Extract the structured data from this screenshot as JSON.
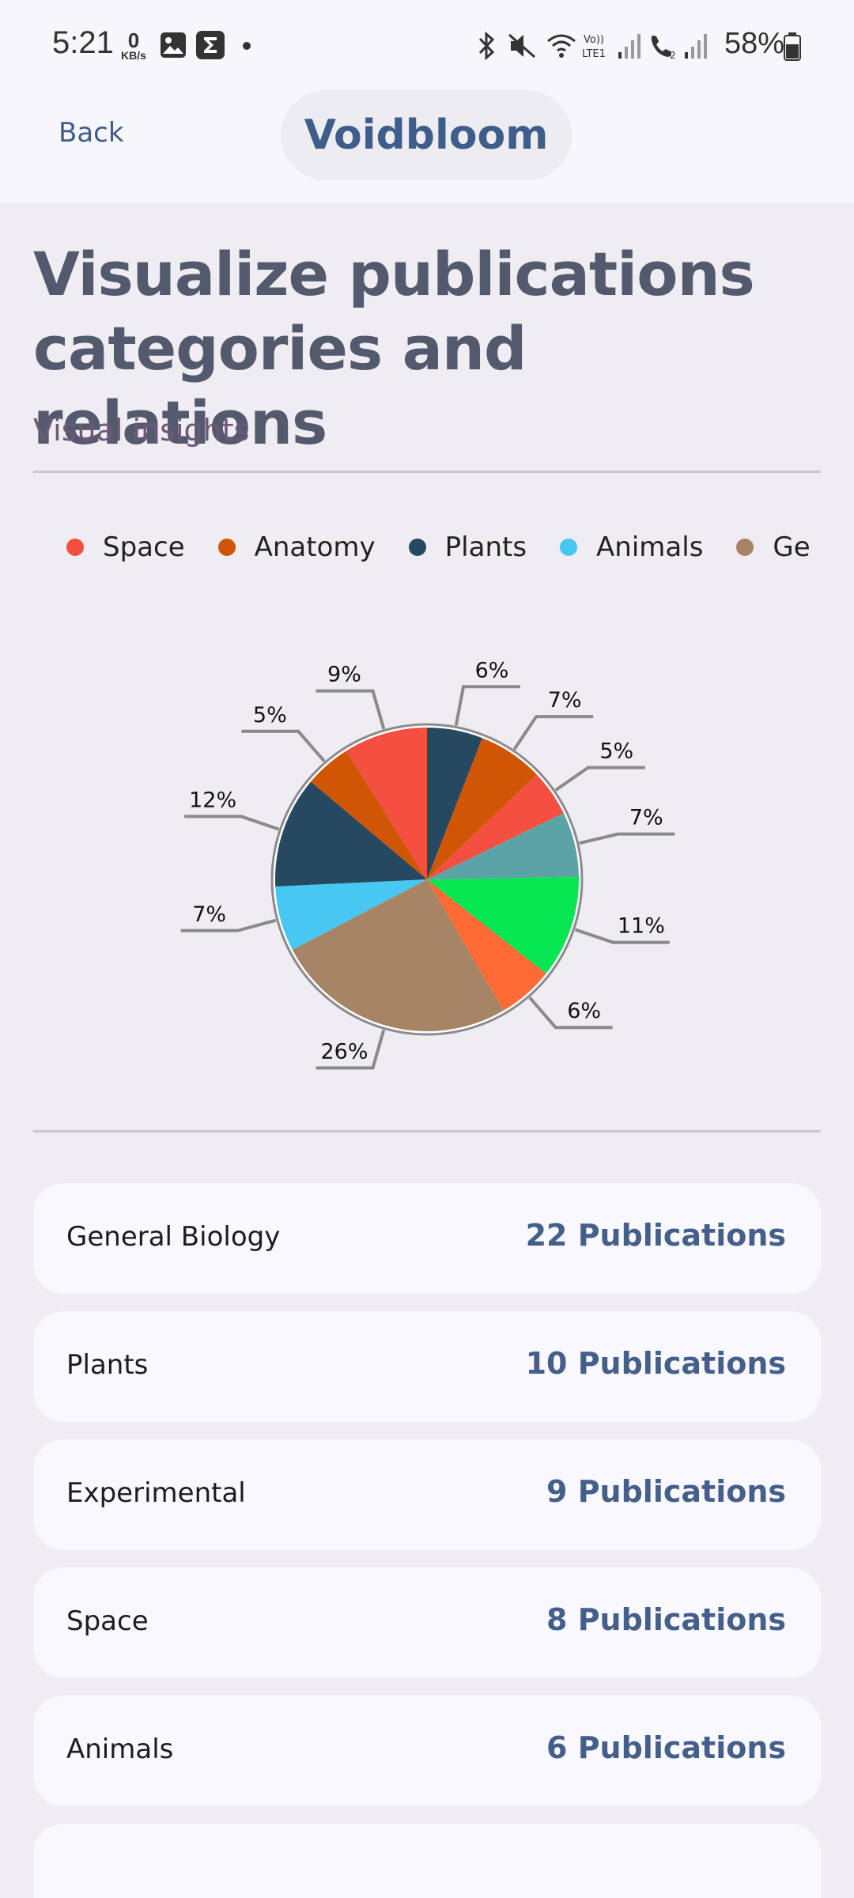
{
  "status": {
    "time": "5:21",
    "net_speed_value": "0",
    "net_speed_unit": "KB/s",
    "battery_percent": "58%"
  },
  "header": {
    "back_label": "Back",
    "app_title": "Voidbloom"
  },
  "page": {
    "title": "Visualize publications categories and relations",
    "subtitle": "Visual insights"
  },
  "colors": {
    "accent": "#3f5d8a",
    "heading": "#545a6e",
    "subtitle": "#6f5877"
  },
  "chart_data": {
    "type": "pie",
    "legend": [
      {
        "label": "Space",
        "color": "#f44f40"
      },
      {
        "label": "Anatomy",
        "color": "#cf5605"
      },
      {
        "label": "Plants",
        "color": "#264961"
      },
      {
        "label": "Animals",
        "color": "#47c8f2"
      },
      {
        "label": "Ge",
        "color": "#a68465"
      }
    ],
    "slices": [
      {
        "value": 6,
        "label": "6%",
        "color": "#264961"
      },
      {
        "value": 7,
        "label": "7%",
        "color": "#cf5605"
      },
      {
        "value": 5,
        "label": "5%",
        "color": "#f44f40"
      },
      {
        "value": 7,
        "label": "7%",
        "color": "#5ba3a6"
      },
      {
        "value": 11,
        "label": "11%",
        "color": "#05e650"
      },
      {
        "value": 6,
        "label": "6%",
        "color": "#ff6a35"
      },
      {
        "value": 26,
        "label": "26%",
        "color": "#a68465"
      },
      {
        "value": 7,
        "label": "7%",
        "color": "#47c8f2"
      },
      {
        "value": 12,
        "label": "12%",
        "color": "#264961"
      },
      {
        "value": 5,
        "label": "5%",
        "color": "#cf5605"
      },
      {
        "value": 9,
        "label": "9%",
        "color": "#f44f40"
      }
    ]
  },
  "categories": [
    {
      "name": "General Biology",
      "count": "22 Publications"
    },
    {
      "name": "Plants",
      "count": "10 Publications"
    },
    {
      "name": "Experimental",
      "count": "9 Publications"
    },
    {
      "name": "Space",
      "count": "8 Publications"
    },
    {
      "name": "Animals",
      "count": "6 Publications"
    },
    {
      "name": "",
      "count": ""
    }
  ]
}
